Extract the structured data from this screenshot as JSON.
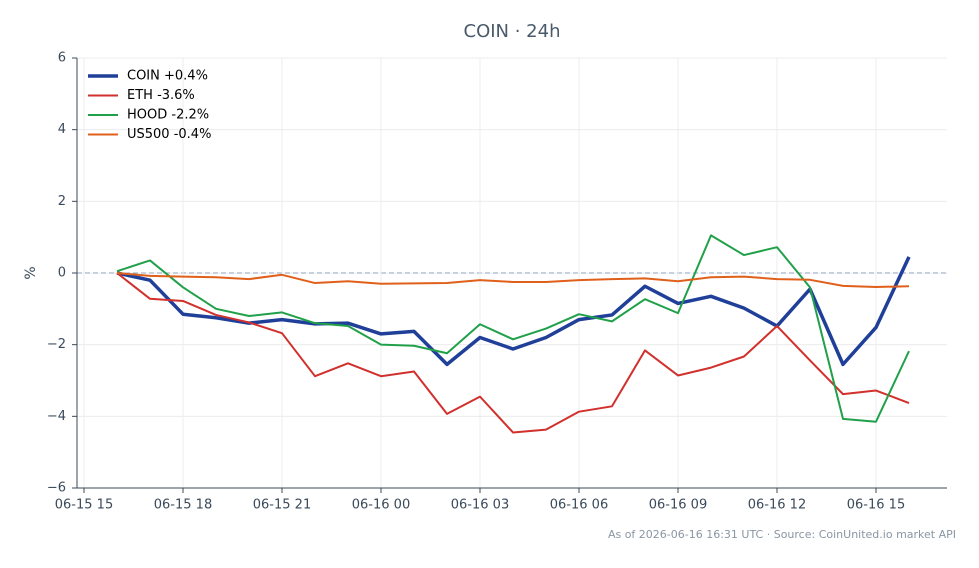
{
  "chart_data": {
    "type": "line",
    "title": "COIN · 24h",
    "ylabel": "%",
    "note": "As of 2026-06-16 16:31 UTC · Source: CoinUnited.io market API",
    "x": [
      "06-15 16",
      "06-15 17",
      "06-15 18",
      "06-15 19",
      "06-15 20",
      "06-15 21",
      "06-15 22",
      "06-15 23",
      "06-16 00",
      "06-16 01",
      "06-16 02",
      "06-16 03",
      "06-16 04",
      "06-16 05",
      "06-16 06",
      "06-16 07",
      "06-16 08",
      "06-16 09",
      "06-16 10",
      "06-16 11",
      "06-16 12",
      "06-16 13",
      "06-16 14",
      "06-16 15",
      "06-16 16"
    ],
    "series": [
      {
        "name": "COIN +0.4%",
        "color": "#1f3f99",
        "values": [
          0,
          -0.2,
          -1.15,
          -1.25,
          -1.4,
          -1.3,
          -1.42,
          -1.4,
          -1.7,
          -1.63,
          -2.55,
          -1.8,
          -2.12,
          -1.8,
          -1.3,
          -1.17,
          -0.37,
          -0.85,
          -0.65,
          -0.98,
          -1.48,
          -0.45,
          -2.55,
          -1.52,
          0.45
        ]
      },
      {
        "name": "ETH -3.6%",
        "color": "#d1302c",
        "values": [
          0,
          -0.72,
          -0.78,
          -1.17,
          -1.38,
          -1.68,
          -2.88,
          -2.52,
          -2.88,
          -2.75,
          -3.93,
          -3.45,
          -4.45,
          -4.37,
          -3.87,
          -3.72,
          -2.16,
          -2.86,
          -2.64,
          -2.33,
          -1.48,
          -2.44,
          -3.38,
          -3.28,
          -3.63
        ]
      },
      {
        "name": "HOOD -2.2%",
        "color": "#21a04a",
        "values": [
          0.05,
          0.35,
          -0.4,
          -1.0,
          -1.2,
          -1.1,
          -1.4,
          -1.48,
          -2.0,
          -2.03,
          -2.24,
          -1.43,
          -1.85,
          -1.55,
          -1.15,
          -1.35,
          -0.73,
          -1.12,
          1.05,
          0.5,
          0.72,
          -0.4,
          -4.07,
          -4.15,
          -2.18
        ]
      },
      {
        "name": "US500 -0.4%",
        "color": "#e0601b",
        "values": [
          0,
          -0.08,
          -0.1,
          -0.12,
          -0.17,
          -0.05,
          -0.28,
          -0.23,
          -0.3,
          -0.29,
          -0.28,
          -0.2,
          -0.25,
          -0.25,
          -0.2,
          -0.17,
          -0.15,
          -0.23,
          -0.12,
          -0.1,
          -0.17,
          -0.19,
          -0.36,
          -0.39,
          -0.37
        ]
      }
    ],
    "xlim": [
      "06-15 15",
      "06-16 17"
    ],
    "xticks": [
      "06-15 15",
      "06-15 18",
      "06-15 21",
      "06-16 00",
      "06-16 03",
      "06-16 06",
      "06-16 09",
      "06-16 12",
      "06-16 15"
    ],
    "ylim": [
      -6,
      6
    ],
    "yticks": [
      {
        "value": -6,
        "label": "−6"
      },
      {
        "value": -4,
        "label": "−4"
      },
      {
        "value": -2,
        "label": "−2"
      },
      0,
      2,
      4,
      6
    ],
    "grid": true,
    "legend": "upper-left"
  }
}
